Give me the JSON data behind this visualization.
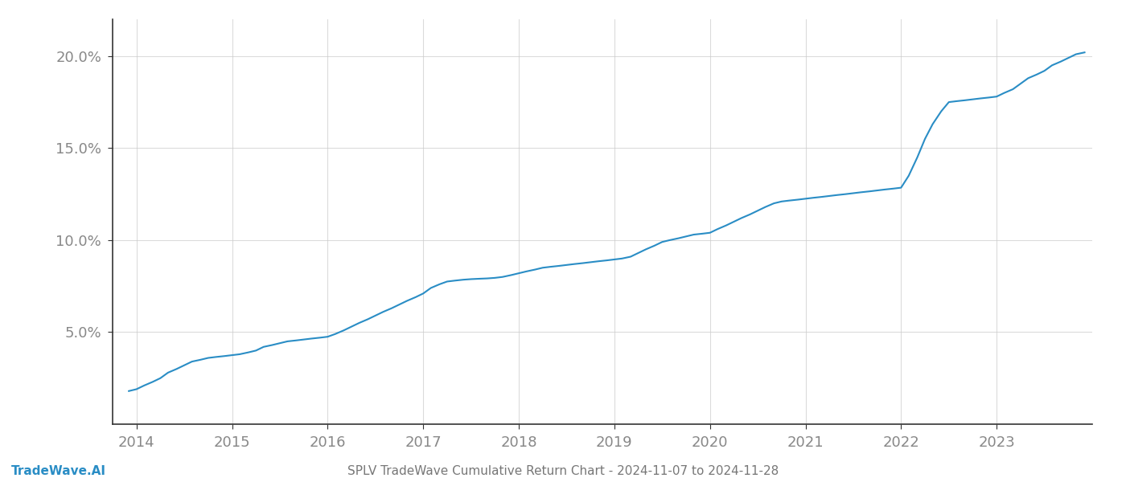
{
  "title": "SPLV TradeWave Cumulative Return Chart - 2024-11-07 to 2024-11-28",
  "watermark": "TradeWave.AI",
  "line_color": "#2a8dc5",
  "background_color": "#ffffff",
  "grid_color": "#cccccc",
  "x_years": [
    2014,
    2015,
    2016,
    2017,
    2018,
    2019,
    2020,
    2021,
    2022,
    2023
  ],
  "x_data": [
    2013.92,
    2014.0,
    2014.08,
    2014.17,
    2014.25,
    2014.33,
    2014.42,
    2014.5,
    2014.58,
    2014.67,
    2014.75,
    2014.83,
    2014.92,
    2015.0,
    2015.08,
    2015.17,
    2015.25,
    2015.33,
    2015.42,
    2015.5,
    2015.58,
    2015.67,
    2015.75,
    2015.83,
    2015.92,
    2016.0,
    2016.08,
    2016.17,
    2016.25,
    2016.33,
    2016.42,
    2016.5,
    2016.58,
    2016.67,
    2016.75,
    2016.83,
    2016.92,
    2017.0,
    2017.08,
    2017.17,
    2017.25,
    2017.33,
    2017.42,
    2017.5,
    2017.58,
    2017.67,
    2017.75,
    2017.83,
    2017.92,
    2018.0,
    2018.08,
    2018.17,
    2018.25,
    2018.33,
    2018.42,
    2018.5,
    2018.58,
    2018.67,
    2018.75,
    2018.83,
    2018.92,
    2019.0,
    2019.08,
    2019.17,
    2019.25,
    2019.33,
    2019.42,
    2019.5,
    2019.58,
    2019.67,
    2019.75,
    2019.83,
    2019.92,
    2020.0,
    2020.08,
    2020.17,
    2020.25,
    2020.33,
    2020.42,
    2020.5,
    2020.58,
    2020.67,
    2020.75,
    2020.83,
    2020.92,
    2021.0,
    2021.08,
    2021.17,
    2021.25,
    2021.33,
    2021.42,
    2021.5,
    2021.58,
    2021.67,
    2021.75,
    2021.83,
    2021.92,
    2022.0,
    2022.08,
    2022.17,
    2022.25,
    2022.33,
    2022.42,
    2022.5,
    2022.58,
    2022.67,
    2022.75,
    2022.83,
    2022.92,
    2023.0,
    2023.08,
    2023.17,
    2023.25,
    2023.33,
    2023.42,
    2023.5,
    2023.58,
    2023.67,
    2023.75,
    2023.83,
    2023.92
  ],
  "y_data": [
    1.8,
    1.9,
    2.1,
    2.3,
    2.5,
    2.8,
    3.0,
    3.2,
    3.4,
    3.5,
    3.6,
    3.65,
    3.7,
    3.75,
    3.8,
    3.9,
    4.0,
    4.2,
    4.3,
    4.4,
    4.5,
    4.55,
    4.6,
    4.65,
    4.7,
    4.75,
    4.9,
    5.1,
    5.3,
    5.5,
    5.7,
    5.9,
    6.1,
    6.3,
    6.5,
    6.7,
    6.9,
    7.1,
    7.4,
    7.6,
    7.75,
    7.8,
    7.85,
    7.88,
    7.9,
    7.92,
    7.95,
    8.0,
    8.1,
    8.2,
    8.3,
    8.4,
    8.5,
    8.55,
    8.6,
    8.65,
    8.7,
    8.75,
    8.8,
    8.85,
    8.9,
    8.95,
    9.0,
    9.1,
    9.3,
    9.5,
    9.7,
    9.9,
    10.0,
    10.1,
    10.2,
    10.3,
    10.35,
    10.4,
    10.6,
    10.8,
    11.0,
    11.2,
    11.4,
    11.6,
    11.8,
    12.0,
    12.1,
    12.15,
    12.2,
    12.25,
    12.3,
    12.35,
    12.4,
    12.45,
    12.5,
    12.55,
    12.6,
    12.65,
    12.7,
    12.75,
    12.8,
    12.85,
    13.5,
    14.5,
    15.5,
    16.3,
    17.0,
    17.5,
    17.55,
    17.6,
    17.65,
    17.7,
    17.75,
    17.8,
    18.0,
    18.2,
    18.5,
    18.8,
    19.0,
    19.2,
    19.5,
    19.7,
    19.9,
    20.1,
    20.2
  ],
  "ylim": [
    0,
    22
  ],
  "xlim": [
    2013.75,
    2024.0
  ],
  "yticks": [
    5.0,
    10.0,
    15.0,
    20.0
  ],
  "ytick_labels": [
    "5.0%",
    "10.0%",
    "15.0%",
    "20.0%"
  ],
  "figsize": [
    14,
    6
  ],
  "dpi": 100,
  "line_width": 1.5,
  "tick_label_color": "#888888",
  "title_color": "#777777",
  "watermark_color": "#2a8dc5",
  "spine_color": "#333333",
  "grid_alpha": 0.7
}
